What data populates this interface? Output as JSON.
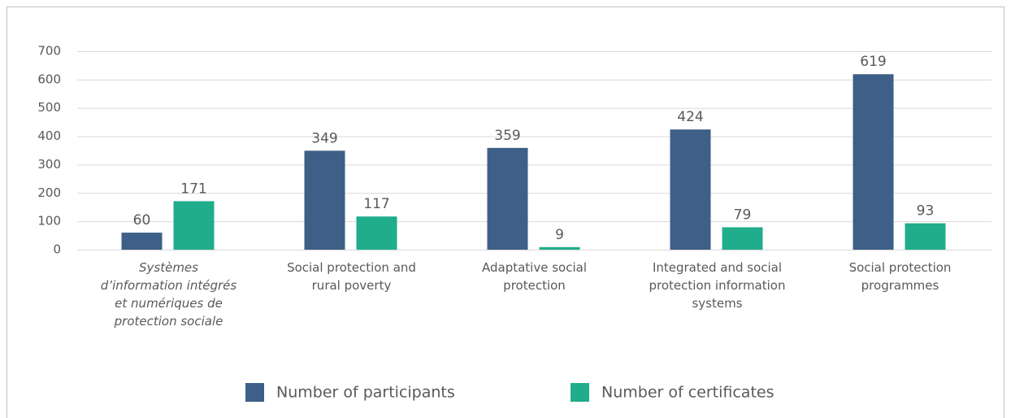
{
  "chart_data": {
    "type": "bar",
    "categories": [
      "Systèmes d’information intégrés et numériques de protection sociale",
      "Social protection and rural poverty",
      "Adaptative social protection",
      "Integrated and social protection information systems",
      "Social protection programmes"
    ],
    "series": [
      {
        "name": "Number of participants",
        "color": "#3e5f87",
        "values": [
          60,
          349,
          359,
          424,
          619
        ]
      },
      {
        "name": "Number of certificates",
        "color": "#1fad8c",
        "values": [
          171,
          117,
          9,
          79,
          93
        ]
      }
    ],
    "ylim": [
      0,
      700
    ],
    "yticks": [
      0,
      100,
      200,
      300,
      400,
      500,
      600,
      700
    ],
    "grid": true,
    "legend": "bottom"
  }
}
